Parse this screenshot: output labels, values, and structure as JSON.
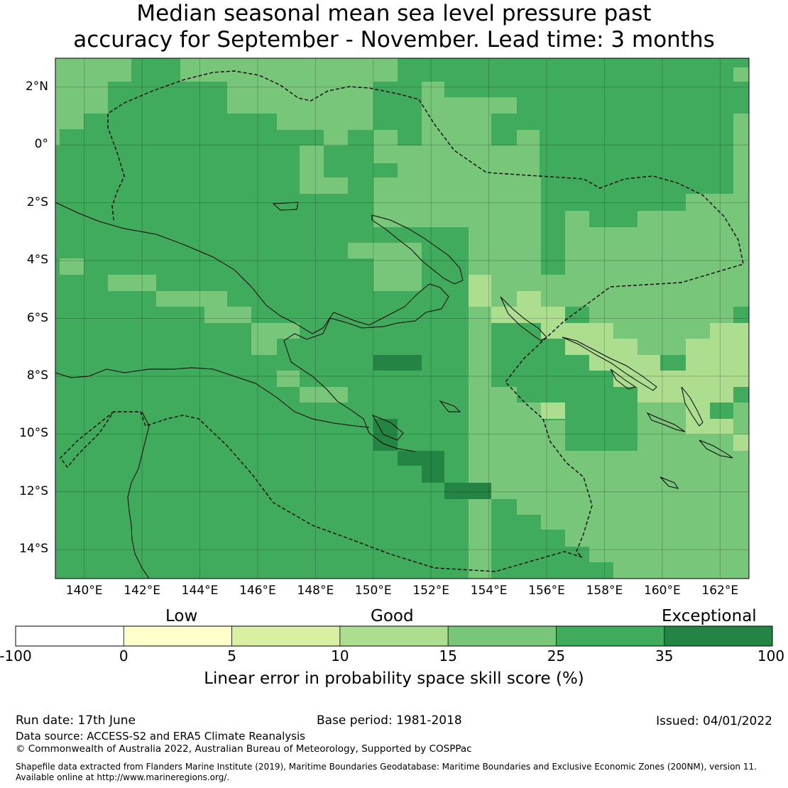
{
  "title": {
    "line1": "Median seasonal mean sea level pressure past",
    "line2": "accuracy for September - November. Lead time: 3 months"
  },
  "map": {
    "lon_range": [
      139,
      163
    ],
    "lat_range": [
      -15,
      3
    ],
    "lat_labels": [
      "2°N",
      "0°",
      "2°S",
      "4°S",
      "6°S",
      "8°S",
      "10°S",
      "12°S",
      "14°S"
    ],
    "lat_values": [
      2,
      0,
      -2,
      -4,
      -6,
      -8,
      -10,
      -12,
      -14
    ],
    "lon_labels": [
      "140°E",
      "142°E",
      "144°E",
      "146°E",
      "148°E",
      "150°E",
      "152°E",
      "154°E",
      "156°E",
      "158°E",
      "160°E",
      "162°E"
    ],
    "lon_values": [
      140,
      142,
      144,
      146,
      148,
      150,
      152,
      154,
      156,
      158,
      160,
      162
    ],
    "dominant_category": "25 to 35",
    "gridlines": true
  },
  "colorbar": {
    "category_labels": [
      "Low",
      "Good",
      "Exceptional"
    ],
    "tick_labels": [
      "-100",
      "0",
      "5",
      "10",
      "15",
      "25",
      "35",
      "100"
    ],
    "colors": [
      "#ffffff",
      "#ffffcc",
      "#d9f0a3",
      "#addd8e",
      "#78c679",
      "#41ab5d",
      "#238443"
    ],
    "label": "Linear error in probability space skill score (%)"
  },
  "footer": {
    "run_date": "Run date: 17th June",
    "base_period": "Base period: 1981-2018",
    "issued": "Issued: 04/01/2022",
    "data_source": "Data source: ACCESS-S2 and ERA5 Climate Reanalysis",
    "copyright": "© Commonwealth of Australia 2022, Australian Bureau of Meteorology, Supported by COSPPac",
    "shapefile_line1": "Shapefile data extracted from Flanders Marine Institute (2019), Maritime Boundaries Geodatabase: Maritime Boundaries and Exclusive Economic Zones (200NM), version 11.",
    "shapefile_line2": "Available online at http://www.marineregions.org/."
  }
}
